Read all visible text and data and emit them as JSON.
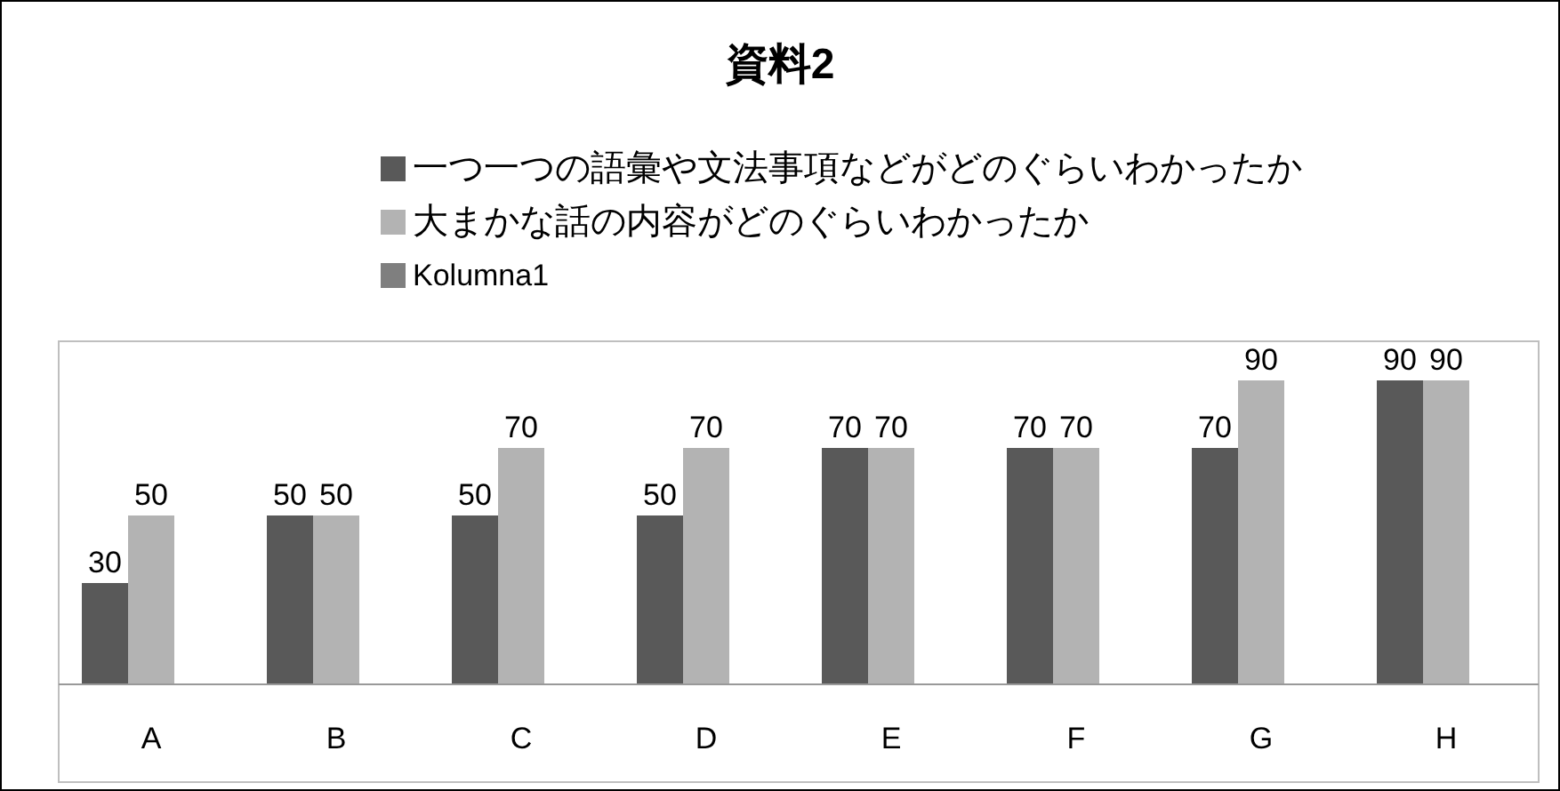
{
  "chart_data": {
    "type": "bar",
    "title": "資料2",
    "categories": [
      "A",
      "B",
      "C",
      "D",
      "E",
      "F",
      "G",
      "H"
    ],
    "series": [
      {
        "name": "一つ一つの語彙や文法事項などがどのぐらいわかったか",
        "color": "#595959",
        "values": [
          30,
          50,
          50,
          50,
          70,
          70,
          70,
          90
        ]
      },
      {
        "name": "大まかな話の内容がどのぐらいわかったか",
        "color": "#b3b3b3",
        "values": [
          50,
          50,
          70,
          70,
          70,
          70,
          90,
          90
        ]
      },
      {
        "name": "Kolumna1",
        "color": "#7f7f7f",
        "values": [
          null,
          null,
          null,
          null,
          null,
          null,
          null,
          null
        ]
      }
    ],
    "data_labels": true,
    "legend": "top",
    "grid": false
  }
}
